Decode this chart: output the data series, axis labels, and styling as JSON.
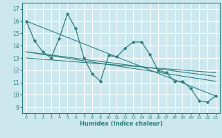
{
  "xlabel": "Humidex (Indice chaleur)",
  "xlim": [
    -0.5,
    23.5
  ],
  "ylim": [
    8.5,
    17.5
  ],
  "yticks": [
    9,
    10,
    11,
    12,
    13,
    14,
    15,
    16,
    17
  ],
  "xticks": [
    0,
    1,
    2,
    3,
    4,
    5,
    6,
    7,
    8,
    9,
    10,
    11,
    12,
    13,
    14,
    15,
    16,
    17,
    18,
    19,
    20,
    21,
    22,
    23
  ],
  "bg_color": "#cce8ee",
  "grid_color": "#ffffff",
  "line_color": "#2d7d7d",
  "jagged_line": {
    "x": [
      0,
      1,
      2,
      3,
      4,
      5,
      6,
      7,
      8,
      9,
      10,
      11,
      12,
      13,
      14,
      15,
      16,
      17,
      18,
      19,
      20,
      21,
      22,
      23
    ],
    "y": [
      16.0,
      14.4,
      13.5,
      13.0,
      14.6,
      16.6,
      15.4,
      13.0,
      11.7,
      11.1,
      13.2,
      13.1,
      13.8,
      14.3,
      14.3,
      13.3,
      12.0,
      11.8,
      11.1,
      11.1,
      10.5,
      9.5,
      9.4,
      9.9
    ]
  },
  "straight_lines": [
    {
      "x": [
        0,
        23
      ],
      "y": [
        16.0,
        9.9
      ]
    },
    {
      "x": [
        0,
        23
      ],
      "y": [
        13.5,
        11.1
      ]
    },
    {
      "x": [
        0,
        23
      ],
      "y": [
        13.5,
        11.5
      ]
    },
    {
      "x": [
        0,
        23
      ],
      "y": [
        13.0,
        11.8
      ]
    }
  ]
}
